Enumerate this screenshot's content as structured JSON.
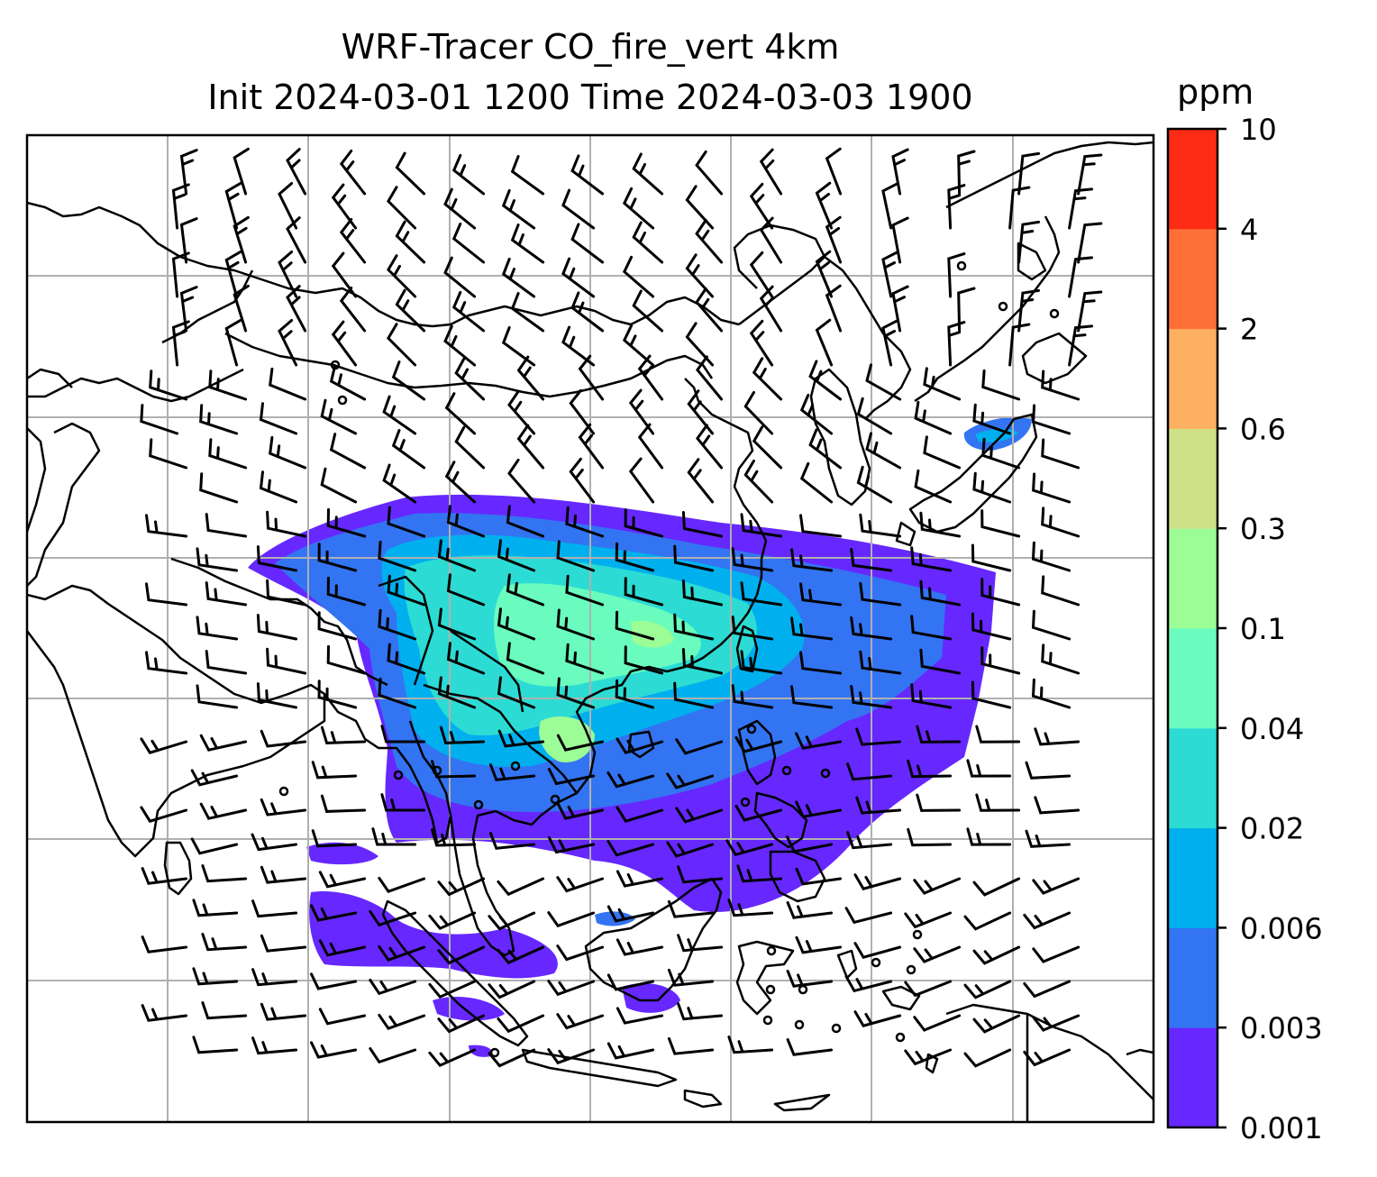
{
  "title_line1": "WRF-Tracer CO_fire_vert 4km",
  "title_line2": "Init 2024-03-01 1200 Time 2024-03-03 1900",
  "colorbar": {
    "unit": "ppm",
    "ticks": [
      "0.001",
      "0.003",
      "0.006",
      "0.02",
      "0.04",
      "0.1",
      "0.3",
      "0.6",
      "2",
      "4",
      "10"
    ],
    "colors": [
      "#6628ff",
      "#3374f2",
      "#00b0ee",
      "#2cdcd4",
      "#6afcbe",
      "#9cfc96",
      "#cfe086",
      "#fdb060",
      "#ff7037",
      "#ff2c15"
    ]
  },
  "map": {
    "gridlines": true,
    "colors": {
      "coast": "#000000",
      "grid": "#b0b0b0",
      "barb": "#000000"
    }
  }
}
